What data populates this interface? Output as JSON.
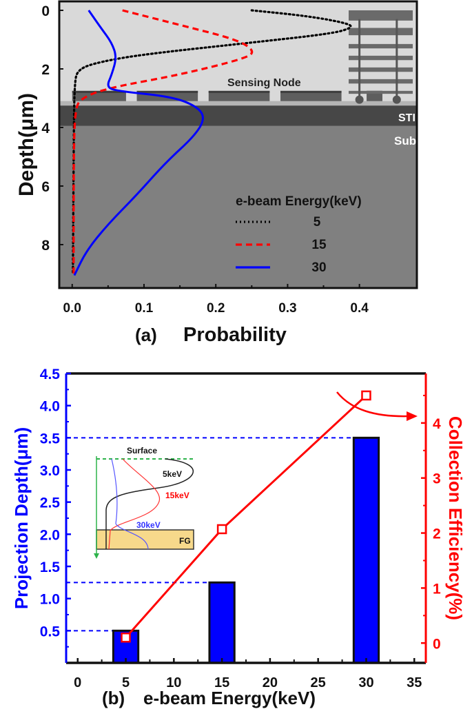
{
  "chart_data": [
    {
      "panel_label": "(a)",
      "type": "line",
      "xlabel": "Probability",
      "ylabel": "Depth(μm)",
      "xlim": [
        -0.018,
        0.48
      ],
      "ylim": [
        0,
        9.6
      ],
      "y_inverted": true,
      "xticks": [
        "0.0",
        "0.1",
        "0.2",
        "0.3",
        "0.4"
      ],
      "xtick_values": [
        0,
        0.1,
        0.2,
        0.3,
        0.4
      ],
      "yticks": [
        "0",
        "2",
        "4",
        "6",
        "8"
      ],
      "ytick_values": [
        0,
        2,
        4,
        6,
        8
      ],
      "grid": false,
      "legend": {
        "title": "e-beam Energy(keV)",
        "position": "bottom-right"
      },
      "annotations": [
        "Sensing Node",
        "STI",
        "Sub"
      ],
      "background_colors": {
        "oxide": "#d9d9d9",
        "gate": "#5e5e5e",
        "sti": "#474747",
        "sub": "#808080"
      },
      "series": [
        {
          "name": "5",
          "style": "dotted",
          "color": "#000000",
          "x": [
            0.25,
            0.33,
            0.385,
            0.39,
            0.36,
            0.25,
            0.1,
            0.04,
            0.008,
            0.003,
            0.002,
            0.001
          ],
          "y": [
            0.0,
            0.2,
            0.45,
            0.6,
            0.8,
            1.1,
            1.5,
            1.75,
            2.0,
            2.5,
            5.0,
            9.0
          ]
        },
        {
          "name": "15",
          "style": "dashed",
          "color": "#ff0000",
          "x": [
            0.07,
            0.15,
            0.23,
            0.255,
            0.24,
            0.15,
            0.05,
            0.012,
            0.004,
            0.002,
            0.002
          ],
          "y": [
            0.0,
            0.5,
            1.0,
            1.4,
            1.65,
            2.2,
            2.65,
            3.0,
            3.4,
            5.0,
            9.0
          ]
        },
        {
          "name": "30",
          "style": "solid",
          "color": "#0000ff",
          "x": [
            0.023,
            0.04,
            0.055,
            0.062,
            0.055,
            0.048,
            0.06,
            0.14,
            0.175,
            0.185,
            0.17,
            0.13,
            0.09,
            0.05,
            0.02,
            0.003
          ],
          "y": [
            0.0,
            0.6,
            1.1,
            1.6,
            2.2,
            2.6,
            2.75,
            2.95,
            3.3,
            3.7,
            4.3,
            5.2,
            6.3,
            7.3,
            8.2,
            9.05
          ]
        }
      ]
    },
    {
      "panel_label": "(b)",
      "type": "bar",
      "xlabel": "e-beam Energy(keV)",
      "ylabel": "Projection Depth(μm)",
      "y2label": "Collection Efficiency(%)",
      "xlim": [
        -1.2,
        36.2
      ],
      "ylim": [
        0,
        4.5
      ],
      "y2lim": [
        -0.36,
        4.9
      ],
      "xticks": [
        "0",
        "5",
        "10",
        "15",
        "20",
        "25",
        "30",
        "35"
      ],
      "xtick_values": [
        0,
        5,
        10,
        15,
        20,
        25,
        30,
        35
      ],
      "yticks": [
        "0.5",
        "1.0",
        "1.5",
        "2.0",
        "2.5",
        "3.0",
        "3.5",
        "4.0",
        "4.5"
      ],
      "ytick_values": [
        0.5,
        1.0,
        1.5,
        2.0,
        2.5,
        3.0,
        3.5,
        4.0,
        4.5
      ],
      "y2ticks": [
        "0",
        "1",
        "2",
        "3",
        "4"
      ],
      "y2tick_values": [
        0,
        1,
        2,
        3,
        4
      ],
      "grid": false,
      "colors": {
        "left_axis": "#0000ff",
        "right_axis": "#ff0000",
        "bars": "#0000ff"
      },
      "bars": {
        "x": [
          5,
          15,
          30
        ],
        "values": [
          0.5,
          1.25,
          3.5
        ],
        "axis": "left"
      },
      "line": {
        "x": [
          5,
          15,
          30
        ],
        "values": [
          0.1,
          2.07,
          4.5
        ],
        "axis": "right",
        "marker": "open-square"
      },
      "inset": {
        "labels": {
          "surface": "Surface",
          "e5": "5keV",
          "e15": "15keV",
          "e30": "30keV",
          "fg": "FG"
        }
      }
    }
  ]
}
